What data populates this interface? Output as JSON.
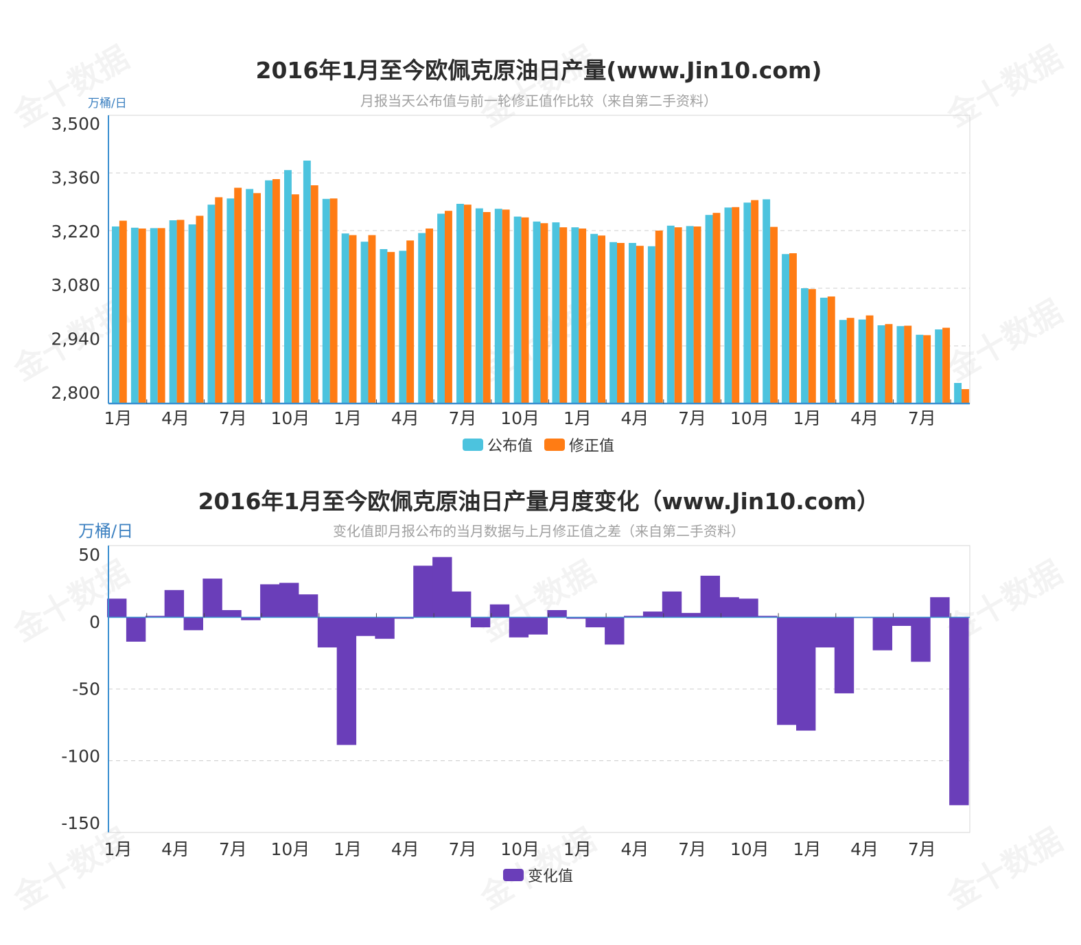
{
  "watermark": "金十数据",
  "colors": {
    "published": "#4cc3de",
    "revised": "#ff7c14",
    "change": "#6a3eb9",
    "axis": "#3a8fd0",
    "grid": "#cccccc",
    "unit": "#3a7fc0"
  },
  "chart_data": [
    {
      "type": "bar",
      "title": "2016年1月至今欧佩克原油日产量(www.Jin10.com)",
      "subtitle": "月报当天公布值与前一轮修正值作比较（来自第二手资料）",
      "ylabel": "万桶/日",
      "ylim": [
        2800,
        3500
      ],
      "yticks": [
        "3,500",
        "3,360",
        "3,220",
        "3,080",
        "2,940",
        "2,800"
      ],
      "ytick_values": [
        3500,
        3360,
        3220,
        3080,
        2940,
        2800
      ],
      "xtick_labels": [
        "1月",
        "4月",
        "7月",
        "10月",
        "1月",
        "4月",
        "7月",
        "10月",
        "1月",
        "4月",
        "7月",
        "10月",
        "1月",
        "4月",
        "7月"
      ],
      "xtick_month_index": [
        0,
        3,
        6,
        9,
        12,
        15,
        18,
        21,
        24,
        27,
        30,
        33,
        36,
        39,
        42
      ],
      "month_count": 45,
      "grid": true,
      "legend_position": "bottom",
      "series": [
        {
          "name": "公布值",
          "values": [
            3230,
            3227,
            3226,
            3245,
            3235,
            3283,
            3298,
            3321,
            3342,
            3367,
            3390,
            3297,
            3213,
            3193,
            3175,
            3171,
            3214,
            3261,
            3285,
            3274,
            3273,
            3254,
            3242,
            3240,
            3228,
            3212,
            3192,
            3190,
            3182,
            3232,
            3231,
            3258,
            3276,
            3288,
            3296,
            3163,
            3080,
            3057,
            3003,
            3004,
            2990,
            2988,
            2967,
            2980,
            2850
          ]
        },
        {
          "name": "修正值",
          "values": [
            3244,
            3225,
            3226,
            3246,
            3256,
            3301,
            3324,
            3311,
            3345,
            3308,
            3330,
            3298,
            3209,
            3209,
            3168,
            3196,
            3225,
            3268,
            3283,
            3265,
            3271,
            3252,
            3238,
            3228,
            3225,
            3208,
            3190,
            3183,
            3220,
            3228,
            3230,
            3263,
            3277,
            3294,
            3229,
            3165,
            3078,
            3060,
            3008,
            3014,
            2993,
            2989,
            2966,
            2984,
            2835
          ]
        }
      ]
    },
    {
      "type": "bar",
      "title": "2016年1月至今欧佩克原油日产量月度变化（www.Jin10.com）",
      "subtitle": "变化值即月报公布的当月数据与上月修正值之差（来自第二手资料）",
      "ylabel": "万桶/日",
      "ylim": [
        -150,
        50
      ],
      "yticks": [
        "50",
        "0",
        "-50",
        "-100",
        "-150"
      ],
      "ytick_values": [
        50,
        0,
        -50,
        -100,
        -150
      ],
      "xtick_labels": [
        "1月",
        "4月",
        "7月",
        "10月",
        "1月",
        "4月",
        "7月",
        "10月",
        "1月",
        "4月",
        "7月",
        "10月",
        "1月",
        "4月",
        "7月"
      ],
      "xtick_month_index": [
        0,
        3,
        6,
        9,
        12,
        15,
        18,
        21,
        24,
        27,
        30,
        33,
        36,
        39,
        42
      ],
      "month_count": 45,
      "grid": true,
      "legend_position": "bottom",
      "series": [
        {
          "name": "变化值",
          "values": [
            13,
            -17,
            1,
            19,
            -9,
            27,
            5,
            -2,
            23,
            24,
            16,
            -21,
            -89,
            -13,
            -15,
            -1,
            36,
            42,
            18,
            -7,
            9,
            -14,
            -12,
            5,
            -1,
            -7,
            -19,
            1,
            4,
            18,
            3,
            29,
            14,
            13,
            1,
            -75,
            -79,
            -21,
            -53,
            0,
            -23,
            -6,
            -31,
            14,
            -131
          ]
        }
      ]
    }
  ]
}
